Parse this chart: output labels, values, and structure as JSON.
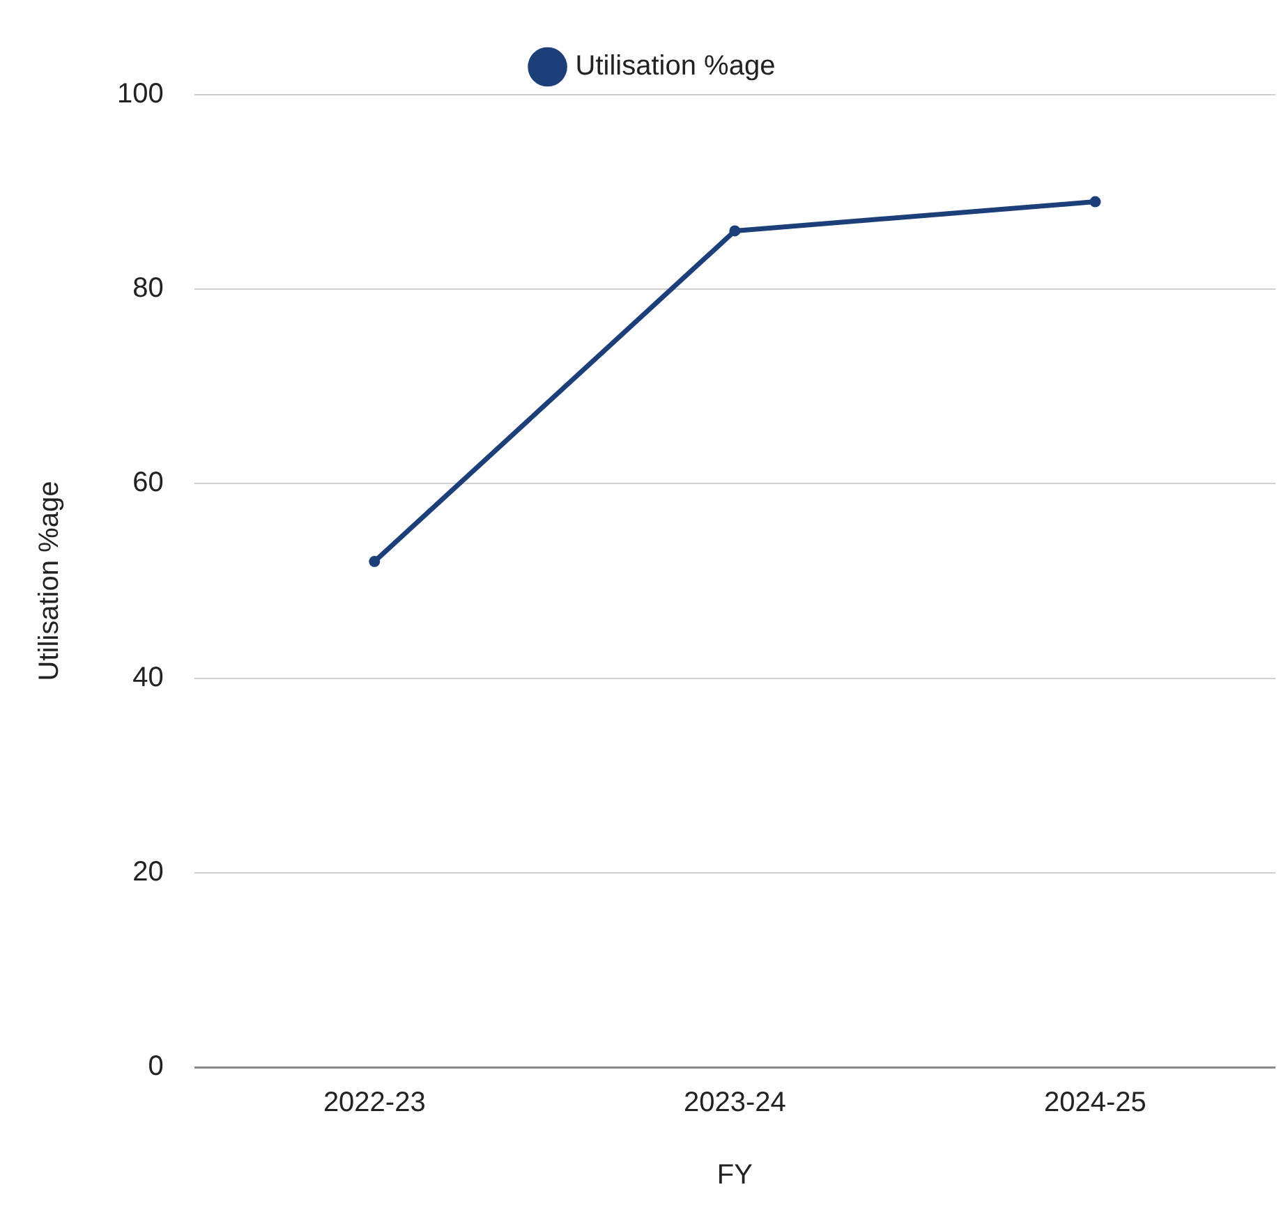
{
  "chart_data": {
    "type": "line",
    "xlabel": "FY",
    "ylabel": "Utilisation %age",
    "categories": [
      "2022-23",
      "2023-24",
      "2024-25"
    ],
    "series": [
      {
        "name": "Utilisation %age",
        "color": "#1c3f7a",
        "values": [
          52,
          86,
          89
        ]
      }
    ],
    "ylim": [
      0,
      100
    ],
    "yticks": [
      0,
      20,
      40,
      60,
      80,
      100
    ],
    "grid": "y",
    "legend": "top",
    "marker": "circle",
    "line_style": "solid"
  }
}
